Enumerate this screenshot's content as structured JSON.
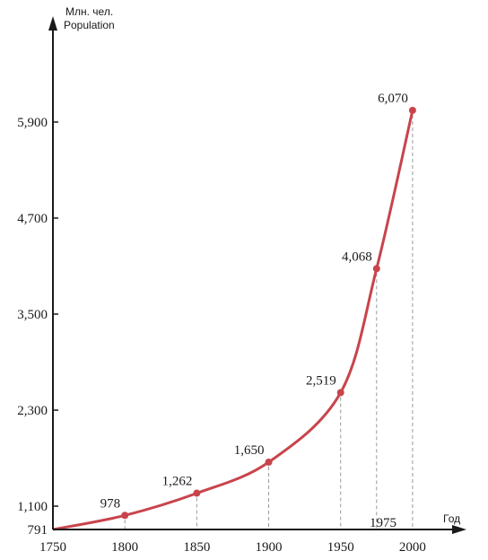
{
  "chart_data": {
    "type": "line",
    "ylabel_ru": "Млн. чел.",
    "ylabel_en": "Population",
    "xlabel": "Год",
    "x": [
      1750,
      1800,
      1850,
      1900,
      1950,
      1975,
      2000
    ],
    "values": [
      791,
      978,
      1262,
      1650,
      2519,
      4068,
      6070
    ],
    "point_labels": [
      "",
      "978",
      "1,262",
      "1,650",
      "2,519",
      "4,068",
      "6,070"
    ],
    "x_ticks": [
      "1750",
      "1800",
      "1850",
      "1900",
      "1950",
      "2000"
    ],
    "x_extra_label": "1975",
    "y_ticks": [
      "791",
      "1,100",
      "2,300",
      "3,500",
      "4,700",
      "5,900"
    ],
    "y_tick_values": [
      791,
      1100,
      2300,
      3500,
      4700,
      5900
    ],
    "xlim": [
      1750,
      2030
    ],
    "line_color": "#c8444c",
    "axis_color": "#1a1a1a",
    "guide_color": "#9a9a9a"
  }
}
